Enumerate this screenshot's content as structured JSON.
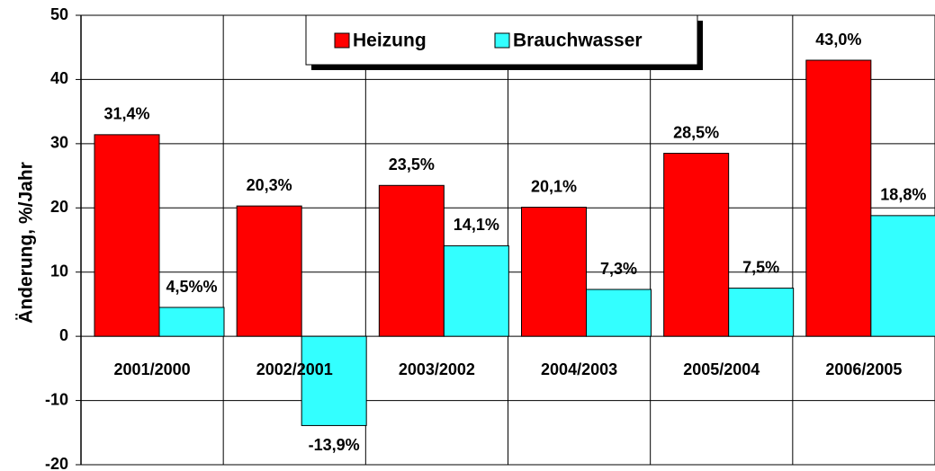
{
  "chart_data": {
    "type": "bar",
    "ylabel": "Änderung, %/Jahr",
    "categories": [
      "2001/2000",
      "2002/2001",
      "2003/2002",
      "2004/2003",
      "2005/2004",
      "2006/2005"
    ],
    "series": [
      {
        "name": "Heizung",
        "color": "#ff0000",
        "values": [
          31.4,
          20.3,
          23.5,
          20.1,
          28.5,
          43.0
        ],
        "value_labels": [
          "31,4%",
          "20,3%",
          "23,5%",
          "20,1%",
          "28,5%",
          "43,0%"
        ]
      },
      {
        "name": "Brauchwasser",
        "color": "#33ffff",
        "values": [
          4.5,
          -13.9,
          14.1,
          7.3,
          7.5,
          18.8
        ],
        "value_labels": [
          "4,5%%",
          "-13,9%",
          "14,1%",
          "7,3%",
          "7,5%",
          "18,8%"
        ]
      }
    ],
    "ylim": [
      -20,
      50
    ],
    "yticks": [
      -20,
      -10,
      0,
      10,
      20,
      30,
      40,
      50
    ],
    "grid": true,
    "legend": "top"
  }
}
